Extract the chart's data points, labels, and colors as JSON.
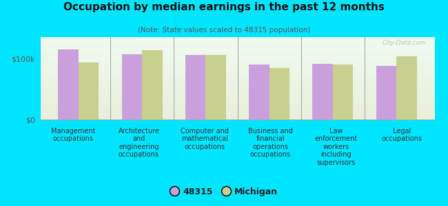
{
  "title": "Occupation by median earnings in the past 12 months",
  "subtitle": "(Note: State values scaled to 48315 population)",
  "categories": [
    "Management\noccupations",
    "Architecture\nand\nengineering\noccupations",
    "Computer and\nmathematical\noccupations",
    "Business and\nfinancial\noperations\noccupations",
    "Law\nenforcement\nworkers\nincluding\nsupervisors",
    "Legal\noccupations"
  ],
  "values_48315": [
    115000,
    107000,
    106000,
    90000,
    91000,
    88000
  ],
  "values_michigan": [
    93000,
    114000,
    106000,
    84000,
    90000,
    103000
  ],
  "color_48315": "#c9a0dc",
  "color_michigan": "#c8cf8f",
  "ylim": [
    0,
    135000
  ],
  "yticks": [
    0,
    100000
  ],
  "ytick_labels": [
    "$0",
    "$100k"
  ],
  "bar_width": 0.32,
  "background_color": "#00e5ff",
  "legend_labels": [
    "48315",
    "Michigan"
  ],
  "watermark": "City-Data.com",
  "separator_color": "#aaaaaa"
}
